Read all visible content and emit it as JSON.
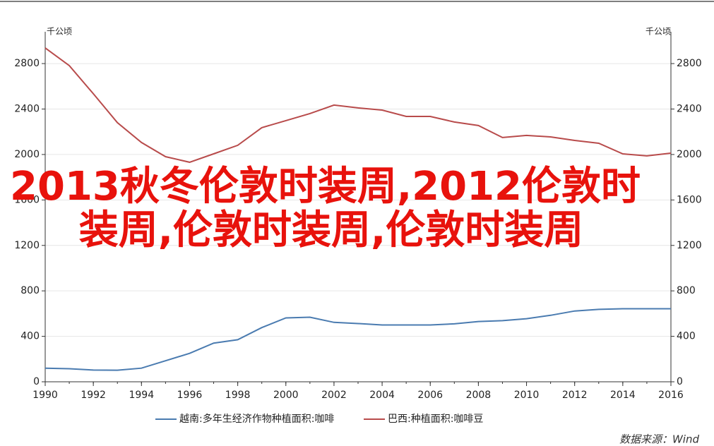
{
  "chart_data": {
    "type": "line",
    "overlay_text": "2013秋冬伦敦时装周,2012伦敦时装周,伦敦时装周,伦敦时装周",
    "y_label": "千公顷",
    "y2_label": "千公顷",
    "source": "数据来源：Wind",
    "x": [
      1990,
      1991,
      1992,
      1993,
      1994,
      1995,
      1996,
      1997,
      1998,
      1999,
      2000,
      2001,
      2002,
      2003,
      2004,
      2005,
      2006,
      2007,
      2008,
      2009,
      2010,
      2011,
      2012,
      2013,
      2014,
      2015,
      2016
    ],
    "xlim": [
      1990,
      2016
    ],
    "xticks": [
      1990,
      1992,
      1994,
      1996,
      1998,
      2000,
      2002,
      2004,
      2006,
      2008,
      2010,
      2012,
      2014,
      2016
    ],
    "ylim": [
      0,
      3080
    ],
    "yticks": [
      0,
      400,
      800,
      1200,
      1600,
      2000,
      2400,
      2800
    ],
    "y2lim": [
      0,
      3080
    ],
    "y2ticks": [
      0,
      400,
      800,
      1200,
      1600,
      2000,
      2400,
      2800
    ],
    "grid": true,
    "legend": "bottom",
    "series": [
      {
        "name": "越南:多年生经济作物种植面积:咖啡",
        "color": "#4a7bb0",
        "values": [
          120,
          115,
          103,
          102,
          120,
          185,
          250,
          340,
          370,
          477,
          562,
          568,
          523,
          512,
          500,
          500,
          500,
          510,
          530,
          538,
          555,
          585,
          623,
          637,
          643,
          643,
          643
        ]
      },
      {
        "name": "巴西:种植面积:咖啡豆",
        "color": "#b84b4b",
        "values": [
          2938,
          2782,
          2534,
          2280,
          2106,
          1981,
          1932,
          2006,
          2081,
          2236,
          2298,
          2360,
          2435,
          2410,
          2391,
          2335,
          2335,
          2286,
          2255,
          2149,
          2168,
          2155,
          2124,
          2099,
          2006,
          1988,
          2012
        ]
      }
    ]
  }
}
